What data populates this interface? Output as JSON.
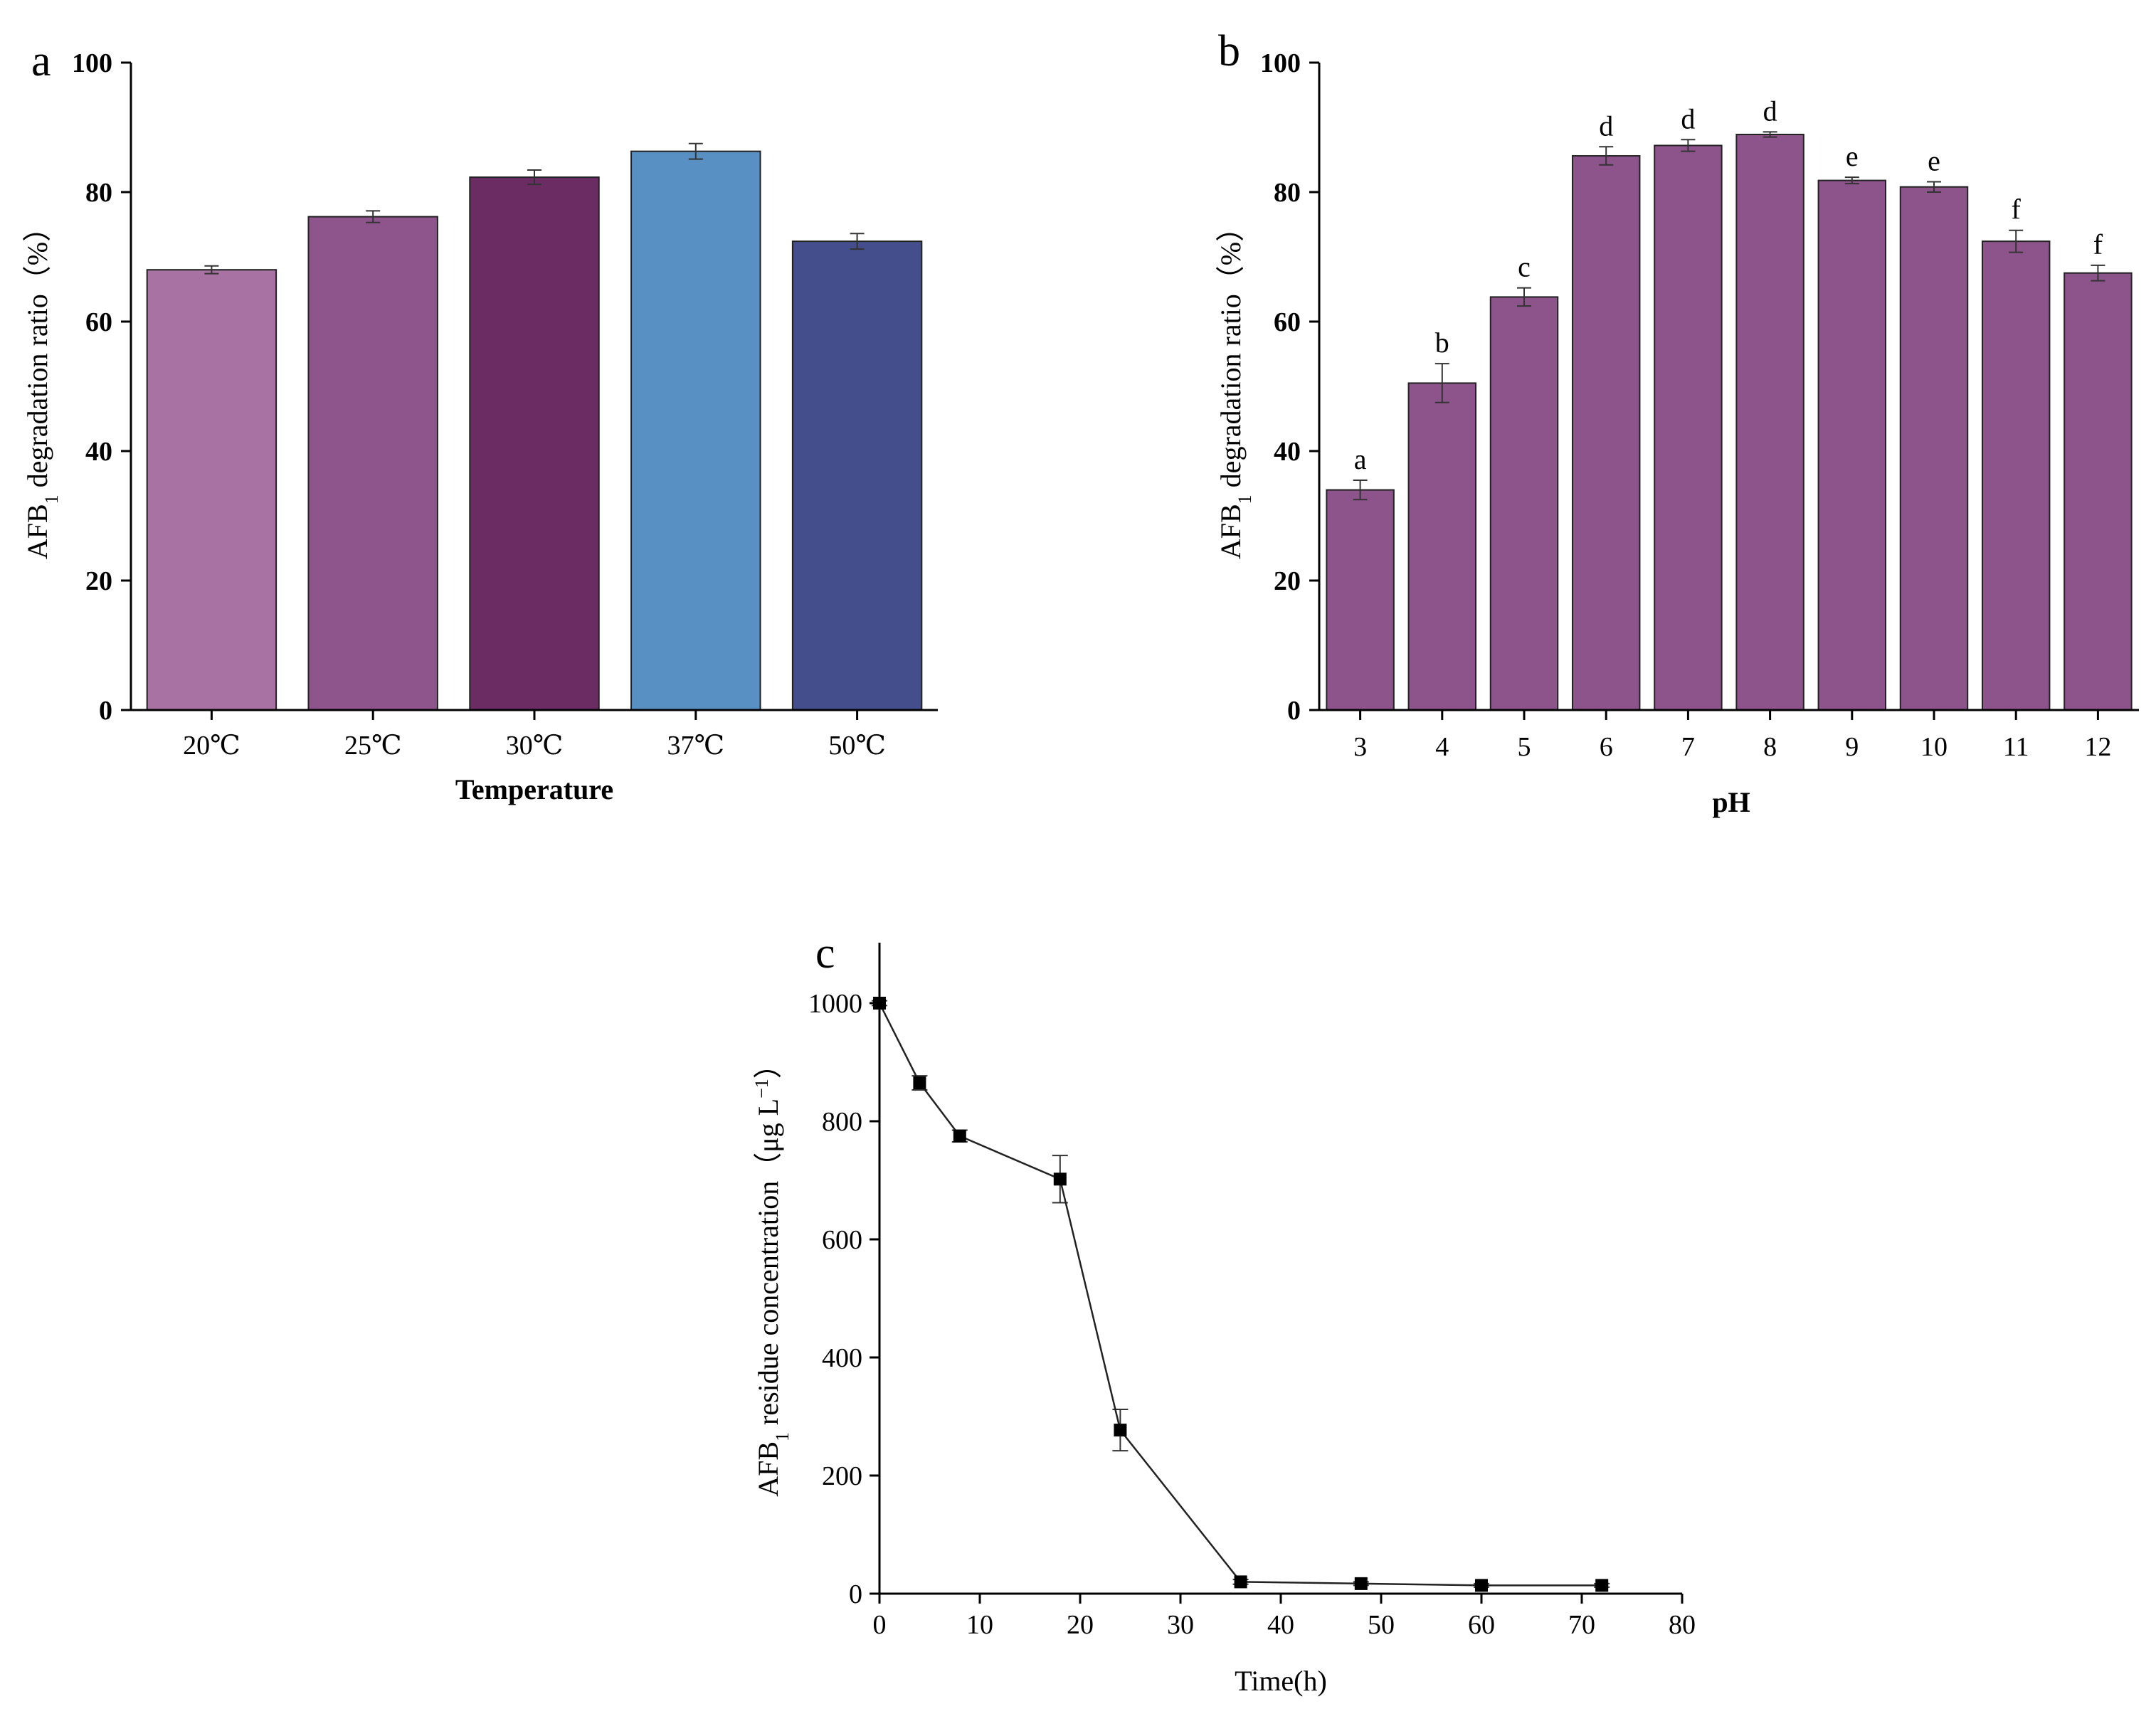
{
  "panels": {
    "a": {
      "letter": "a",
      "ylabel_pre": "AFB",
      "ylabel_sub": "1",
      "ylabel_post": " degradation ratio（%）",
      "xlabel": "Temperature"
    },
    "b": {
      "letter": "b",
      "ylabel_pre": "AFB",
      "ylabel_sub": "1",
      "ylabel_post": " degradation ratio（%）",
      "xlabel": "pH"
    },
    "c": {
      "letter": "c",
      "ylabel_pre": "AFB",
      "ylabel_sub": "1",
      "ylabel_mid": " residue concentration（μg L",
      "ylabel_sup": "−1",
      "ylabel_post": "）",
      "xlabel": "Time(h)"
    }
  },
  "chart_data": [
    {
      "id": "a",
      "type": "bar",
      "categories": [
        "20℃",
        "25℃",
        "30℃",
        "37℃",
        "50℃"
      ],
      "values": [
        68.0,
        76.2,
        82.3,
        86.3,
        72.4
      ],
      "errors": [
        0.6,
        0.9,
        1.1,
        1.2,
        1.2
      ],
      "colors": [
        "#a873a2",
        "#8e548c",
        "#6a2c62",
        "#5890c3",
        "#444e8d"
      ],
      "xlabel": "Temperature",
      "ylabel": "AFB1 degradation ratio（%）",
      "ylim": [
        0,
        100
      ],
      "yticks": [
        0,
        20,
        40,
        60,
        80,
        100
      ]
    },
    {
      "id": "b",
      "type": "bar",
      "categories": [
        "3",
        "4",
        "5",
        "6",
        "7",
        "8",
        "9",
        "10",
        "11",
        "12"
      ],
      "values": [
        34.0,
        50.5,
        63.8,
        85.6,
        87.2,
        88.9,
        81.8,
        80.8,
        72.4,
        67.5
      ],
      "errors": [
        1.5,
        3.0,
        1.4,
        1.4,
        0.9,
        0.4,
        0.5,
        0.8,
        1.7,
        1.2
      ],
      "annotations": [
        "a",
        "b",
        "c",
        "d",
        "d",
        "d",
        "e",
        "e",
        "f",
        "f"
      ],
      "color": "#8d548b",
      "xlabel": "pH",
      "ylabel": "AFB1 degradation ratio（%）",
      "ylim": [
        0,
        100
      ],
      "yticks": [
        0,
        20,
        40,
        60,
        80,
        100
      ]
    },
    {
      "id": "c",
      "type": "line",
      "x": [
        0,
        4,
        8,
        18,
        24,
        36,
        48,
        60,
        72
      ],
      "y": [
        1000,
        865,
        775,
        702,
        277,
        20,
        17,
        14,
        14
      ],
      "errors": [
        4,
        12,
        10,
        40,
        35,
        4,
        3,
        3,
        3
      ],
      "marker": "square",
      "color": "#000000",
      "xlabel": "Time(h)",
      "ylabel": "AFB1 residue concentration（μg L−1）",
      "xlim": [
        0,
        80
      ],
      "ylim": [
        0,
        1000
      ],
      "xticks": [
        0,
        10,
        20,
        30,
        40,
        50,
        60,
        70,
        80
      ],
      "yticks": [
        0,
        200,
        400,
        600,
        800,
        1000
      ]
    }
  ]
}
